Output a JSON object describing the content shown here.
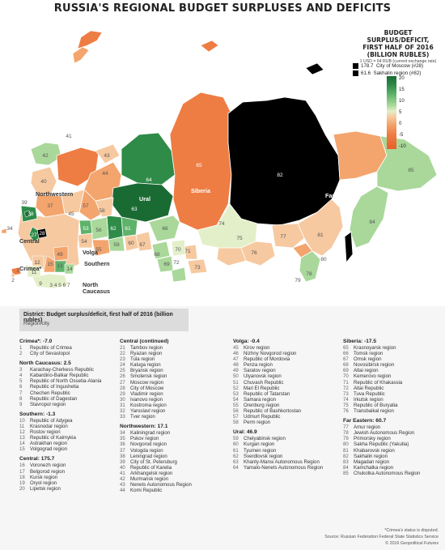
{
  "title": "RUSSIA'S REGIONAL BUDGET SURPLUSES AND DEFICITS",
  "legend": {
    "title_lines": [
      "BUDGET SURPLUS/DEFICIT,",
      "FIRST HALF OF 2016",
      "(BILLION RUBLES)"
    ],
    "note": "1 USD = 64 RUB (current exchange rate)",
    "big_values": [
      {
        "value": "178.7",
        "label": "City of Moscow (#28)"
      },
      {
        "value": "61.6",
        "label": "Sakhalin region (#82)"
      }
    ],
    "scale_ticks": [
      "20",
      "15",
      "10",
      "5",
      "0",
      "-5",
      "-10"
    ],
    "colors": {
      "high": "#1a6b33",
      "mid_pos": "#5fb26a",
      "low_pos": "#a9d89a",
      "neutral": "#e3efc9",
      "low_neg": "#f6c9a0",
      "mid_neg": "#f3a56d",
      "high_neg": "#e8602a",
      "top": "#000000"
    }
  },
  "map_labels": {
    "districts": [
      "Northwestern",
      "Ural",
      "Siberia",
      "Far Eastern",
      "Central",
      "Volga",
      "Southern",
      "North Caucasus",
      "Crimea*"
    ],
    "regions": [
      "82",
      "65",
      "64",
      "63",
      "85",
      "84",
      "81",
      "78",
      "79",
      "80",
      "77",
      "75",
      "76",
      "74",
      "73",
      "72",
      "71",
      "70",
      "69",
      "68",
      "67",
      "66",
      "62",
      "61",
      "60",
      "59",
      "58",
      "57",
      "56",
      "55",
      "54",
      "53",
      "52",
      "51",
      "50",
      "49",
      "48",
      "47",
      "46",
      "45",
      "44",
      "43",
      "42",
      "41",
      "40",
      "39",
      "38",
      "37",
      "36",
      "35",
      "34",
      "33",
      "32",
      "31",
      "30",
      "29",
      "28",
      "27",
      "26",
      "25",
      "24",
      "23",
      "22",
      "21",
      "20",
      "19",
      "18",
      "17",
      "16",
      "15",
      "14",
      "13",
      "12",
      "11",
      "10",
      "9",
      "8",
      "7",
      "6",
      "5",
      "4",
      "3",
      "2",
      "1"
    ]
  },
  "table_header": {
    "title": "District: Budget surplus/deficit, first half of 2016 (billion rubles)",
    "subtitle": "Region/city"
  },
  "columns": [
    [
      {
        "header": "Crimea*: -7.0",
        "items": [
          [
            "1",
            "Republic of Crimea"
          ],
          [
            "2",
            "City of Sevastopol"
          ]
        ]
      },
      {
        "header": "North Caucasus: 2.5",
        "items": [
          [
            "3",
            "Karachay-Cherkess Republic"
          ],
          [
            "4",
            "Kabardino-Balkar Republic"
          ],
          [
            "5",
            "Republic of North Ossetia-Alania"
          ],
          [
            "6",
            "Republic of Ingushetia"
          ],
          [
            "7",
            "Chechen Republic"
          ],
          [
            "8",
            "Republic of Dagestan"
          ],
          [
            "9",
            "Stavropol region"
          ]
        ]
      },
      {
        "header": "Southern: -1.3",
        "items": [
          [
            "10",
            "Republic of Adygea"
          ],
          [
            "11",
            "Krasnodar region"
          ],
          [
            "12",
            "Rostov region"
          ],
          [
            "13",
            "Republic of Kalmykia"
          ],
          [
            "14",
            "Astrakhan region"
          ],
          [
            "15",
            "Volgograd region"
          ]
        ]
      },
      {
        "header": "Central: 175.7",
        "items": [
          [
            "16",
            "Voronezh region"
          ],
          [
            "17",
            "Belgorod region"
          ],
          [
            "18",
            "Kursk region"
          ],
          [
            "19",
            "Oryol region"
          ],
          [
            "20",
            "Lipetsk region"
          ]
        ]
      }
    ],
    [
      {
        "header": "Central (continued)",
        "items": [
          [
            "21",
            "Tambov region"
          ],
          [
            "22",
            "Ryazan region"
          ],
          [
            "23",
            "Tula region"
          ],
          [
            "24",
            "Kaluga region"
          ],
          [
            "25",
            "Bryansk region"
          ],
          [
            "26",
            "Smolensk region"
          ],
          [
            "27",
            "Moscow region"
          ],
          [
            "28",
            "City of Moscow"
          ],
          [
            "29",
            "Vladimir region"
          ],
          [
            "30",
            "Ivanovo region"
          ],
          [
            "31",
            "Kostroma region"
          ],
          [
            "32",
            "Yaroslavl region"
          ],
          [
            "33",
            "Tver region"
          ]
        ]
      },
      {
        "header": "Northwestern: 17.1",
        "items": [
          [
            "34",
            "Kaliningrad region"
          ],
          [
            "35",
            "Pskov region"
          ],
          [
            "36",
            "Novgorod region"
          ],
          [
            "37",
            "Vologda region"
          ],
          [
            "38",
            "Leningrad region"
          ],
          [
            "39",
            "City of St. Petersburg"
          ],
          [
            "40",
            "Republic of Karelia"
          ],
          [
            "41",
            "Arkhangelsk region"
          ],
          [
            "42",
            "Murmansk region"
          ],
          [
            "43",
            "Nenets Autonomous Region"
          ],
          [
            "44",
            "Komi Republic"
          ]
        ]
      }
    ],
    [
      {
        "header": "Volga: -0.4",
        "items": [
          [
            "45",
            "Kirov region"
          ],
          [
            "46",
            "Nizhny Novgorod region"
          ],
          [
            "47",
            "Republic of Mordovia"
          ],
          [
            "48",
            "Penza region"
          ],
          [
            "49",
            "Saratov region"
          ],
          [
            "50",
            "Ulyanovsk region"
          ],
          [
            "51",
            "Chuvash Republic"
          ],
          [
            "52",
            "Mari El Republic"
          ],
          [
            "53",
            "Republic of Tatarstan"
          ],
          [
            "54",
            "Samara region"
          ],
          [
            "55",
            "Orenburg region"
          ],
          [
            "56",
            "Republic of Bashkortostan"
          ],
          [
            "57",
            "Udmurt Republic"
          ],
          [
            "58",
            "Perm region"
          ]
        ]
      },
      {
        "header": "Ural: 46.9",
        "items": [
          [
            "59",
            "Chelyabinsk region"
          ],
          [
            "60",
            "Kurgan region"
          ],
          [
            "61",
            "Tyumen region"
          ],
          [
            "62",
            "Sverdlovsk region"
          ],
          [
            "63",
            "Khanty-Mansi Autonomous Region"
          ],
          [
            "64",
            "Yamalo-Nenets Autonomous Region"
          ]
        ]
      }
    ],
    [
      {
        "header": "Siberia: -17.5",
        "items": [
          [
            "65",
            "Krasnoyarsk region"
          ],
          [
            "66",
            "Tomsk region"
          ],
          [
            "67",
            "Omsk region"
          ],
          [
            "68",
            "Novosibirsk region"
          ],
          [
            "69",
            "Altai region"
          ],
          [
            "70",
            "Kemerovo region"
          ],
          [
            "71",
            "Republic of Khakassia"
          ],
          [
            "72",
            "Altai Republic"
          ],
          [
            "73",
            "Tuva Republic"
          ],
          [
            "74",
            "Irkutsk region"
          ],
          [
            "75",
            "Republic of Buryatia"
          ],
          [
            "76",
            "Transbaikal region"
          ]
        ]
      },
      {
        "header": "Far Eastern: 60.7",
        "items": [
          [
            "77",
            "Amur region"
          ],
          [
            "78",
            "Jewish Autonomous Region"
          ],
          [
            "79",
            "Primorsky region"
          ],
          [
            "80",
            "Sakha Republic (Yakutia)"
          ],
          [
            "81",
            "Khabarovsk region"
          ],
          [
            "82",
            "Sakhalin region"
          ],
          [
            "83",
            "Magadan region"
          ],
          [
            "84",
            "Kamchatka region"
          ],
          [
            "85",
            "Chukotka Autonomous Region"
          ]
        ]
      }
    ]
  ],
  "footer": [
    "*Crimea's status is disputed.",
    "Source: Russian Federation Federal State Statistics Service",
    "© 2016 Geopolitical Futures"
  ]
}
